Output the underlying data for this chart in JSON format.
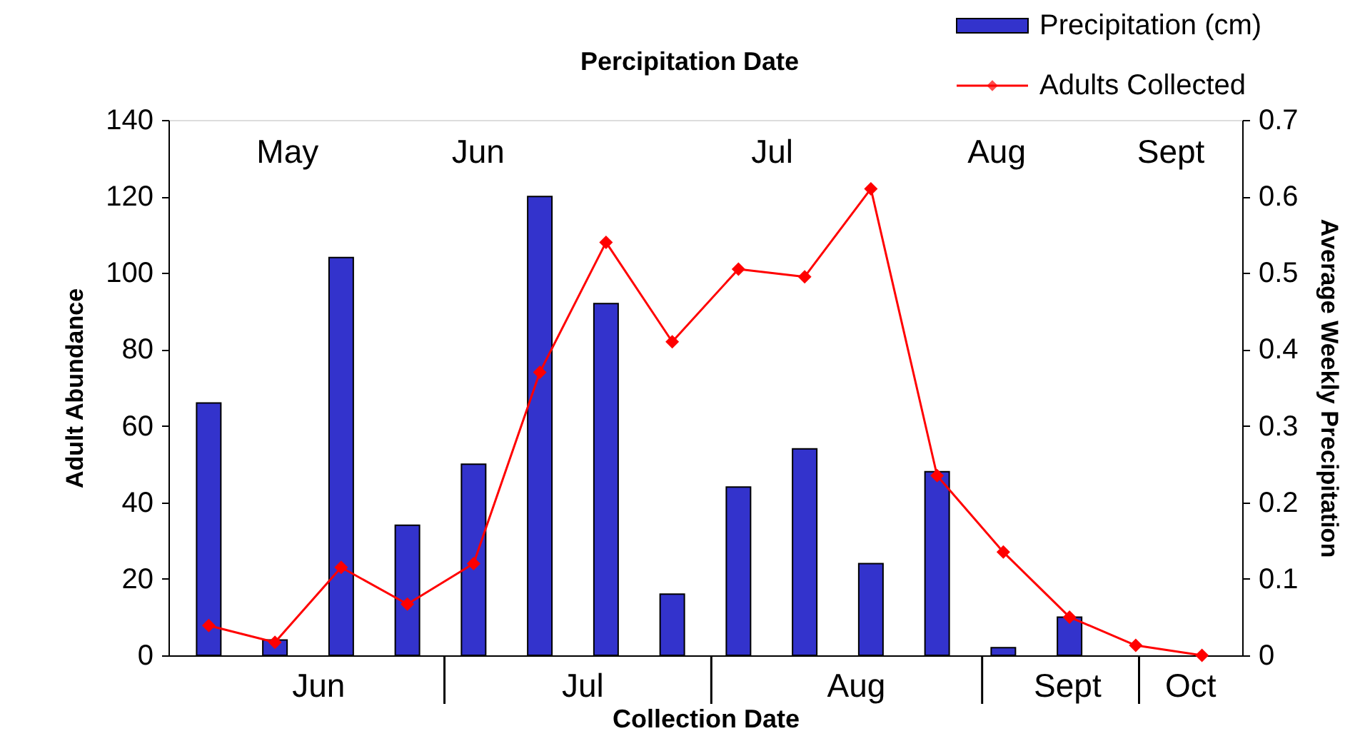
{
  "chart_data": {
    "type": "bar",
    "title": "Percipitation Date",
    "xlabel": "Collection Date",
    "ylabel": "Adult Abundance",
    "y2label": "Average Weekly Precipitation",
    "categories": [
      null,
      null,
      null,
      null,
      null,
      null,
      null,
      null,
      null,
      null,
      null,
      null,
      null,
      null,
      null,
      null
    ],
    "ylim": [
      0,
      140
    ],
    "yticks": [
      0,
      20,
      40,
      60,
      80,
      100,
      120,
      140
    ],
    "y2lim": [
      0,
      0.7
    ],
    "y2ticks": [
      0,
      0.1,
      0.2,
      0.3,
      0.4,
      0.5,
      0.6,
      0.7
    ],
    "grid": false,
    "legend": "top right",
    "marker": "diamond",
    "annotations": [
      "May",
      "Jun",
      "Jul",
      "Aug",
      "Sept",
      "Jun",
      "Jul",
      "Aug",
      "Sept",
      "Oct"
    ],
    "series": [
      {
        "name": "Precipitation (cm)",
        "axis": "y2",
        "color": "#3333cc",
        "values": [
          0.33,
          0.02,
          0.52,
          0.17,
          0.25,
          0.6,
          0.46,
          0.08,
          0.22,
          0.27,
          0.12,
          0.24,
          0.01,
          0.05,
          null,
          null
        ]
      },
      {
        "name": "Adults Collected",
        "type": "line",
        "color": "#ff0000",
        "values": [
          7.8,
          3.4,
          23,
          13.4,
          24,
          74,
          108,
          82,
          101,
          99,
          122,
          47,
          27,
          10,
          2.6,
          0
        ]
      }
    ]
  }
}
